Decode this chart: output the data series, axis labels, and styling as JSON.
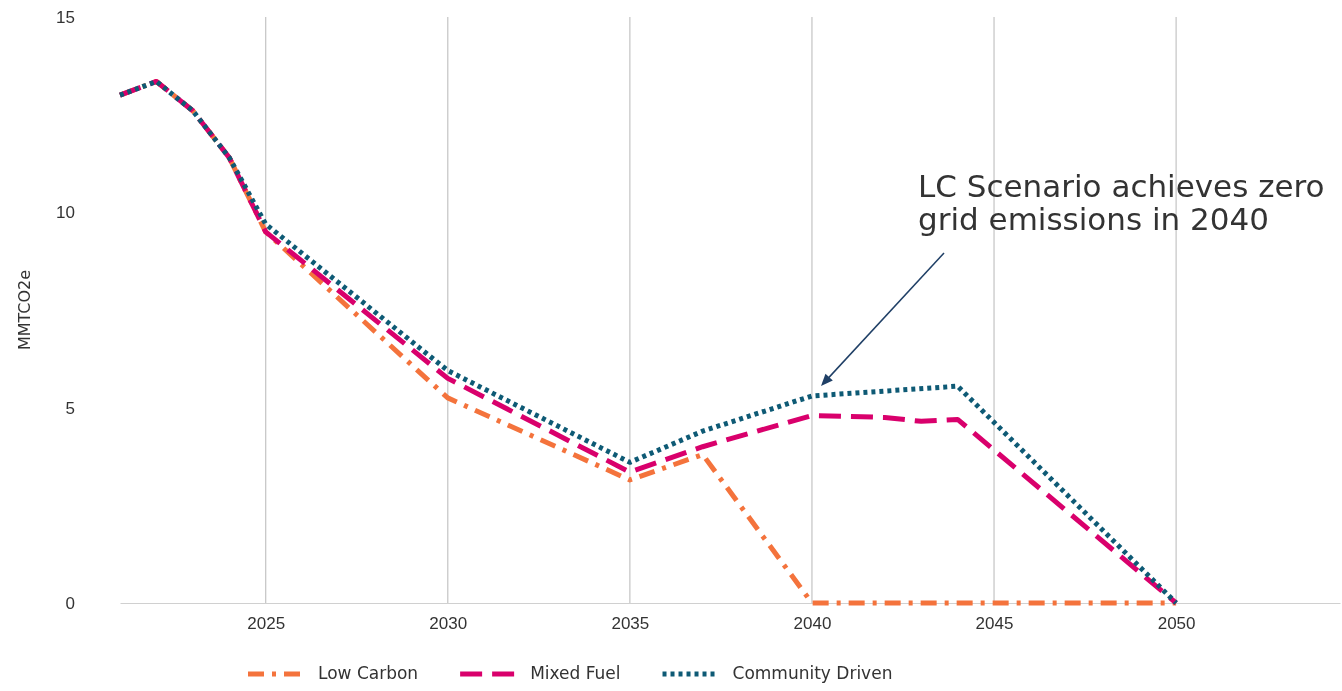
{
  "chart_data": {
    "type": "line",
    "ylabel": "MMTCO2e",
    "xlim": [
      2021,
      2054.5
    ],
    "ylim": [
      0,
      15
    ],
    "xticks": [
      2025,
      2030,
      2035,
      2040,
      2045,
      2050
    ],
    "yticks": [
      0,
      5,
      10,
      15
    ],
    "grid": "x",
    "legend": "bottom",
    "marker": "none",
    "series": [
      {
        "name": "Low Carbon",
        "color": "#f4733c",
        "line_style": "dashdot",
        "x": [
          2021,
          2022,
          2023,
          2024,
          2025,
          2030,
          2035,
          2037,
          2040,
          2045,
          2050
        ],
        "values": [
          13.0,
          13.35,
          12.6,
          11.4,
          9.5,
          5.25,
          3.15,
          3.8,
          0,
          0,
          0
        ]
      },
      {
        "name": "Mixed Fuel",
        "color": "#d9006c",
        "line_style": "dashed",
        "x": [
          2021,
          2022,
          2023,
          2024,
          2025,
          2030,
          2035,
          2037,
          2040,
          2042,
          2043,
          2044,
          2050
        ],
        "values": [
          13.0,
          13.35,
          12.6,
          11.4,
          9.5,
          5.75,
          3.35,
          4.0,
          4.8,
          4.75,
          4.65,
          4.7,
          0
        ]
      },
      {
        "name": "Community Driven",
        "color": "#0e5a75",
        "line_style": "dotted",
        "x": [
          2021,
          2022,
          2023,
          2024,
          2025,
          2030,
          2035,
          2037,
          2040,
          2044,
          2050
        ],
        "values": [
          13.0,
          13.35,
          12.6,
          11.4,
          9.7,
          5.95,
          3.6,
          4.4,
          5.3,
          5.55,
          0
        ]
      }
    ],
    "annotations": [
      "LC Scenario achieves zero grid emissions in 2040"
    ]
  }
}
